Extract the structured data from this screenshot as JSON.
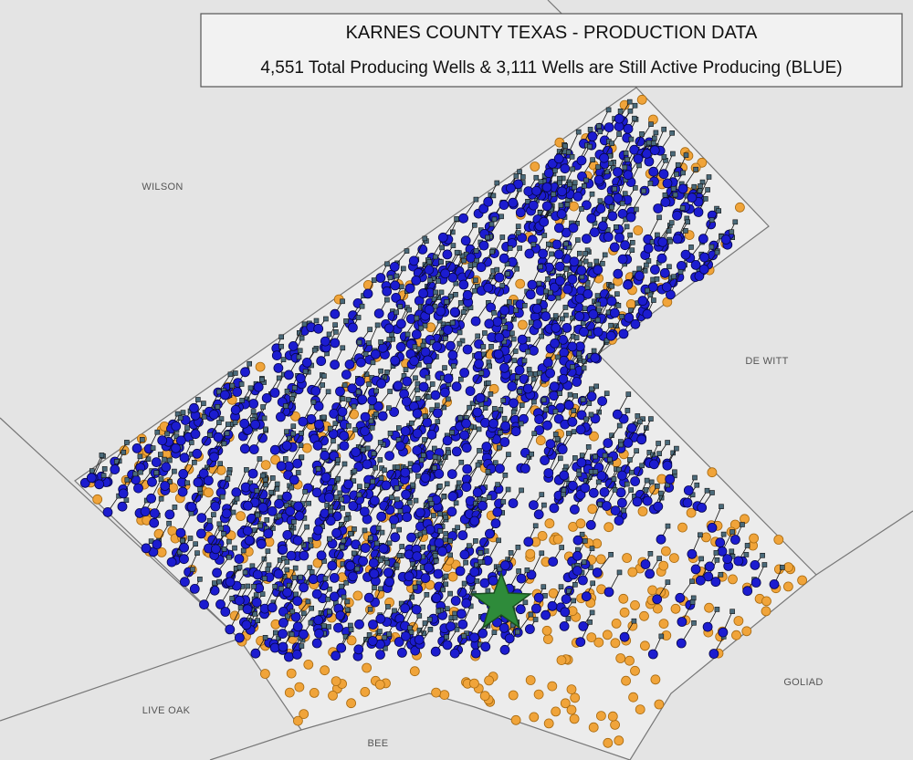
{
  "header": {
    "title": "KARNES COUNTY TEXAS - PRODUCTION DATA",
    "subtitle": "4,551 Total Producing Wells &  3,111 Wells are Still Active Producing (BLUE)"
  },
  "counties": [
    "WILSON",
    "DE WITT",
    "GOLIAD",
    "LIVE OAK",
    "BEE"
  ]
}
